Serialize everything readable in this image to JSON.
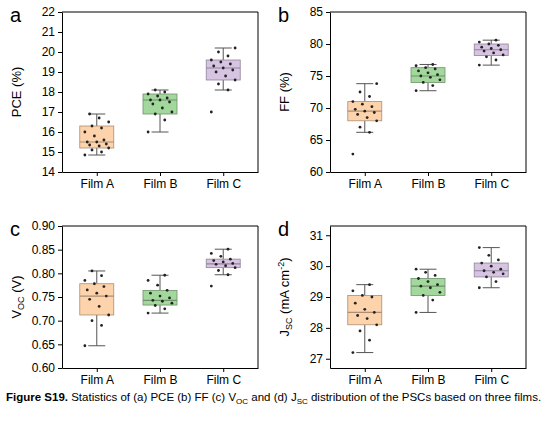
{
  "chart_data": [
    {
      "type": "box",
      "label": "a",
      "y_label": [
        {
          "text": "PCE (%)"
        }
      ],
      "categories": [
        "Film A",
        "Film B",
        "Film C"
      ],
      "colors": [
        "#fcd3ab",
        "#a3d89d",
        "#d6c4e2"
      ],
      "ylim": [
        14,
        22
      ],
      "yticks": [
        14,
        15,
        16,
        17,
        18,
        19,
        20,
        21,
        22
      ],
      "boxes": [
        {
          "q1": 15.2,
          "median": 15.5,
          "q3": 16.3,
          "whisker_low": 14.85,
          "whisker_high": 16.9,
          "points": [
            14.85,
            15.0,
            15.1,
            15.2,
            15.3,
            15.35,
            15.4,
            15.5,
            15.5,
            15.6,
            15.8,
            16.0,
            16.2,
            16.3,
            16.5,
            16.7,
            16.9
          ]
        },
        {
          "q1": 16.9,
          "median": 17.6,
          "q3": 17.9,
          "whisker_low": 16.0,
          "whisker_high": 18.1,
          "points": [
            16.0,
            16.6,
            16.9,
            17.0,
            17.2,
            17.4,
            17.5,
            17.6,
            17.6,
            17.7,
            17.8,
            17.9,
            18.0,
            18.1
          ]
        },
        {
          "q1": 18.6,
          "median": 19.2,
          "q3": 19.6,
          "whisker_low": 18.1,
          "whisker_high": 20.2,
          "points": [
            17.0,
            18.1,
            18.4,
            18.6,
            18.8,
            19.0,
            19.1,
            19.2,
            19.3,
            19.4,
            19.5,
            19.6,
            19.8,
            20.0,
            20.2
          ]
        }
      ]
    },
    {
      "type": "box",
      "label": "b",
      "y_label": [
        {
          "text": "FF (%)"
        }
      ],
      "categories": [
        "Film A",
        "Film B",
        "Film C"
      ],
      "colors": [
        "#fcd3ab",
        "#a3d89d",
        "#d6c4e2"
      ],
      "ylim": [
        60,
        85
      ],
      "yticks": [
        60,
        65,
        70,
        75,
        80,
        85
      ],
      "boxes": [
        {
          "q1": 68.0,
          "median": 69.5,
          "q3": 71.0,
          "whisker_low": 66.2,
          "whisker_high": 73.8,
          "points": [
            62.8,
            66.2,
            67.0,
            68.0,
            68.5,
            69.0,
            69.3,
            69.5,
            69.8,
            70.2,
            70.6,
            71.0,
            71.8,
            72.5,
            73.8
          ]
        },
        {
          "q1": 74.0,
          "median": 75.0,
          "q3": 76.3,
          "whisker_low": 72.7,
          "whisker_high": 76.8,
          "points": [
            72.7,
            73.5,
            74.0,
            74.4,
            74.8,
            75.0,
            75.2,
            75.5,
            75.8,
            76.1,
            76.3,
            76.6,
            76.8
          ]
        },
        {
          "q1": 78.2,
          "median": 79.1,
          "q3": 80.0,
          "whisker_low": 76.7,
          "whisker_high": 80.6,
          "points": [
            76.7,
            77.5,
            78.0,
            78.3,
            78.6,
            78.9,
            79.1,
            79.3,
            79.5,
            79.8,
            80.0,
            80.3,
            80.6
          ]
        }
      ]
    },
    {
      "type": "box",
      "label": "c",
      "y_label": [
        {
          "text": "V"
        },
        {
          "text": "OC",
          "sub": true
        },
        {
          "text": " (V)"
        }
      ],
      "categories": [
        "Film A",
        "Film B",
        "Film C"
      ],
      "colors": [
        "#fcd3ab",
        "#a3d89d",
        "#d6c4e2"
      ],
      "ylim": [
        0.6,
        0.9
      ],
      "yticks": [
        {
          "value": 0.6,
          "label": "0.60"
        },
        0.65,
        {
          "value": 0.7,
          "label": "0.70"
        },
        0.75,
        {
          "value": 0.8,
          "label": "0.80"
        },
        0.85,
        {
          "value": 0.9,
          "label": "0.90"
        }
      ],
      "boxes": [
        {
          "q1": 0.712,
          "median": 0.752,
          "q3": 0.778,
          "whisker_low": 0.647,
          "whisker_high": 0.805,
          "points": [
            0.647,
            0.69,
            0.7,
            0.712,
            0.73,
            0.745,
            0.752,
            0.758,
            0.765,
            0.772,
            0.778,
            0.785,
            0.795,
            0.805
          ]
        },
        {
          "q1": 0.733,
          "median": 0.743,
          "q3": 0.764,
          "whisker_low": 0.716,
          "whisker_high": 0.796,
          "points": [
            0.716,
            0.725,
            0.732,
            0.737,
            0.741,
            0.743,
            0.748,
            0.752,
            0.758,
            0.764,
            0.775,
            0.785,
            0.796
          ]
        },
        {
          "q1": 0.812,
          "median": 0.82,
          "q3": 0.83,
          "whisker_low": 0.797,
          "whisker_high": 0.851,
          "points": [
            0.773,
            0.797,
            0.806,
            0.812,
            0.816,
            0.819,
            0.821,
            0.824,
            0.827,
            0.83,
            0.836,
            0.842,
            0.851
          ]
        }
      ]
    },
    {
      "type": "box",
      "label": "d",
      "y_label": [
        {
          "text": "J"
        },
        {
          "text": "SC",
          "sub": true
        },
        {
          "text": " (mA cm"
        },
        {
          "text": "-2",
          "sup": true
        },
        {
          "text": ")"
        }
      ],
      "categories": [
        "Film A",
        "Film B",
        "Film C"
      ],
      "colors": [
        "#fcd3ab",
        "#a3d89d",
        "#d6c4e2"
      ],
      "ylim": [
        26.7,
        31.3
      ],
      "yticks": [
        27,
        28,
        29,
        30,
        31
      ],
      "boxes": [
        {
          "q1": 28.1,
          "median": 28.5,
          "q3": 29.05,
          "whisker_low": 27.2,
          "whisker_high": 29.4,
          "points": [
            27.2,
            27.6,
            27.9,
            28.1,
            28.3,
            28.4,
            28.5,
            28.6,
            28.8,
            29.0,
            29.05,
            29.2,
            29.4
          ]
        },
        {
          "q1": 29.05,
          "median": 29.35,
          "q3": 29.6,
          "whisker_low": 28.5,
          "whisker_high": 29.9,
          "points": [
            28.5,
            28.9,
            29.05,
            29.15,
            29.3,
            29.35,
            29.4,
            29.5,
            29.6,
            29.7,
            29.8,
            29.9
          ]
        },
        {
          "q1": 29.65,
          "median": 29.85,
          "q3": 30.1,
          "whisker_low": 29.3,
          "whisker_high": 30.6,
          "points": [
            29.3,
            29.5,
            29.65,
            29.75,
            29.8,
            29.85,
            29.9,
            30.0,
            30.1,
            30.2,
            30.35,
            30.6
          ]
        }
      ]
    }
  ],
  "caption": [
    {
      "text": "Figure S19.",
      "bold": true
    },
    {
      "text": " Statistics of (a) PCE (b) FF (c) "
    },
    {
      "text": "V"
    },
    {
      "text": "OC",
      "sub": true
    },
    {
      "text": " and (d) "
    },
    {
      "text": "J"
    },
    {
      "text": "SC",
      "sub": true
    },
    {
      "text": " distribution of the PSCs based on three films."
    }
  ]
}
